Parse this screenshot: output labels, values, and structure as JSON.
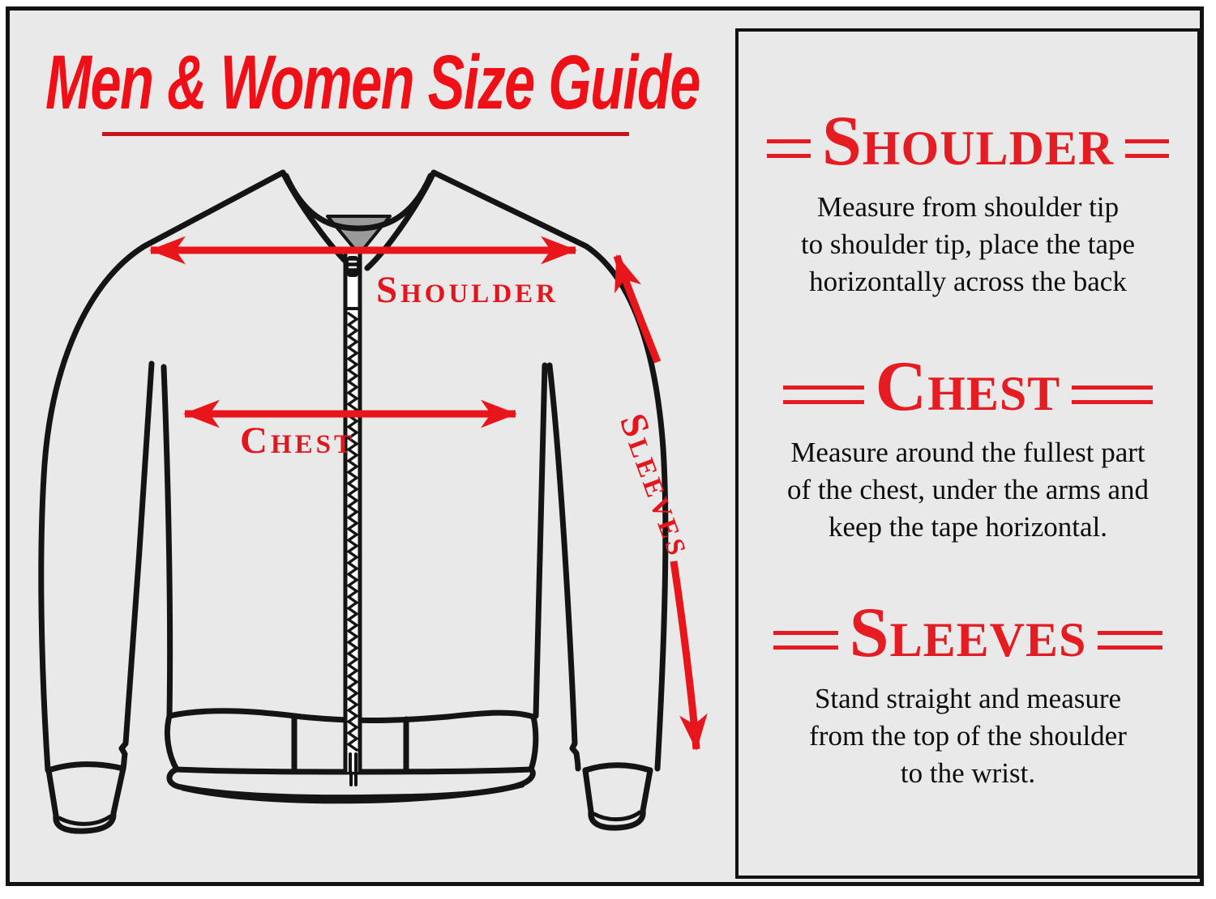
{
  "title": {
    "text": "Men & Women Size Guide"
  },
  "jacket": {
    "labels": {
      "shoulder": "Shoulder",
      "chest": "Chest",
      "sleeves": "Sleeves"
    }
  },
  "panel": {
    "sections": [
      {
        "heading": "Shoulder",
        "lines": [
          "Measure from shoulder tip",
          "to shoulder tip, place the tape",
          "horizontally across the back"
        ]
      },
      {
        "heading": "Chest",
        "lines": [
          "Measure around the fullest part",
          "of the chest, under the arms and",
          "keep the tape horizontal."
        ]
      },
      {
        "heading": "Sleeves",
        "lines": [
          "Stand straight and measure",
          "from the top of the shoulder",
          "to the wrist."
        ]
      }
    ]
  },
  "colors": {
    "red": "#e8151b",
    "title_red": "#ee1016",
    "underline_red": "#c3151b",
    "heading_red": "#e51d23",
    "background": "#e9e9e9",
    "line_black": "#141414",
    "collar_gray": "#9a9a9a",
    "text_black": "#0d0d0d"
  }
}
